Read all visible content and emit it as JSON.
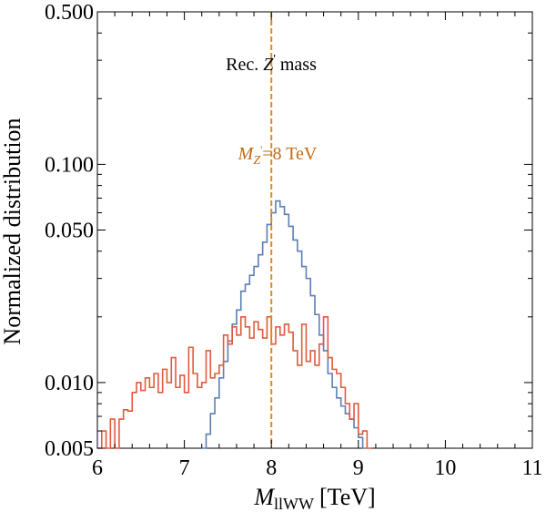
{
  "chart_data": {
    "type": "histogram",
    "title": "",
    "xlabel": {
      "symbol": "M",
      "subscript": "llWW",
      "unit": "[TeV]"
    },
    "ylabel": "Normalized distribution",
    "xlim": [
      6,
      11
    ],
    "ylim": [
      0.005,
      0.5
    ],
    "yscale": "log",
    "grid": false,
    "x_ticks": [
      {
        "value": 6,
        "label": "6"
      },
      {
        "value": 7,
        "label": "7"
      },
      {
        "value": 8,
        "label": "8"
      },
      {
        "value": 9,
        "label": "9"
      },
      {
        "value": 10,
        "label": "10"
      },
      {
        "value": 11,
        "label": "11"
      }
    ],
    "y_ticks": [
      {
        "value": 0.005,
        "label": "0.005"
      },
      {
        "value": 0.01,
        "label": "0.010"
      },
      {
        "value": 0.05,
        "label": "0.050"
      },
      {
        "value": 0.1,
        "label": "0.100"
      },
      {
        "value": 0.5,
        "label": "0.500"
      }
    ],
    "bin_width": 0.05,
    "series": [
      {
        "name": "blue",
        "color": "#5b7fb5",
        "x_start": 7.2,
        "values": [
          0.0042,
          0.0058,
          0.0072,
          0.0085,
          0.0105,
          0.0125,
          0.0155,
          0.0185,
          0.0215,
          0.0262,
          0.0282,
          0.031,
          0.034,
          0.0385,
          0.044,
          0.053,
          0.06,
          0.068,
          0.064,
          0.059,
          0.052,
          0.045,
          0.04,
          0.034,
          0.03,
          0.025,
          0.0205,
          0.0165,
          0.014,
          0.011,
          0.0095,
          0.0085,
          0.0078,
          0.0072,
          0.0068,
          0.0062,
          0.0056,
          0.005
        ]
      },
      {
        "name": "red",
        "color": "#e05a3c",
        "x_start": 6.0,
        "values": [
          0.0042,
          0.006,
          0.005,
          0.0068,
          0.0045,
          0.0068,
          0.0075,
          0.0074,
          0.009,
          0.01,
          0.0092,
          0.0105,
          0.0095,
          0.011,
          0.009,
          0.0115,
          0.01,
          0.013,
          0.0095,
          0.0108,
          0.009,
          0.0145,
          0.011,
          0.0095,
          0.01,
          0.014,
          0.0105,
          0.011,
          0.012,
          0.0165,
          0.015,
          0.018,
          0.0165,
          0.02,
          0.018,
          0.016,
          0.019,
          0.0175,
          0.016,
          0.02,
          0.015,
          0.018,
          0.0165,
          0.0185,
          0.017,
          0.014,
          0.012,
          0.0185,
          0.0125,
          0.014,
          0.012,
          0.015,
          0.02,
          0.013,
          0.0115,
          0.011,
          0.0095,
          0.008,
          0.0068,
          0.008,
          0.0058,
          0.006,
          0.0045
        ]
      }
    ],
    "reference_line": {
      "x": 8,
      "color": "#e08a1e",
      "dashed": true
    },
    "annotations": {
      "rec_text_pre": "Rec.",
      "rec_symbol": "Z",
      "rec_prime": "'",
      "rec_text_post": "mass",
      "mz_symbol": "M",
      "mz_sub": "Z",
      "mz_prime": "'",
      "mz_value": "=8 TeV",
      "mz_color": "#c46a12"
    }
  }
}
